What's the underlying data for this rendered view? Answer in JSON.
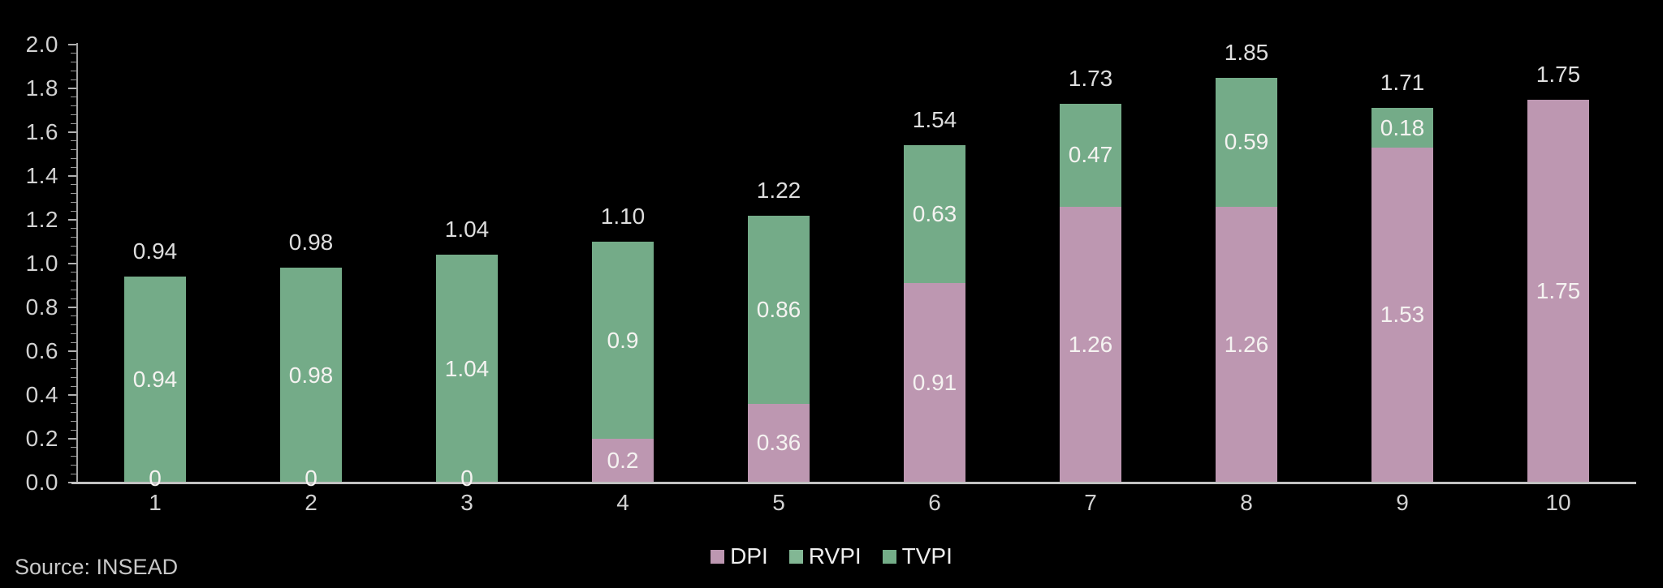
{
  "chart_data": {
    "type": "bar",
    "stacked": true,
    "title": "",
    "xlabel": "",
    "ylabel": "",
    "categories": [
      "1",
      "2",
      "3",
      "4",
      "5",
      "6",
      "7",
      "8",
      "9",
      "10"
    ],
    "series": [
      {
        "name": "DPI",
        "color": "#bd97b1",
        "values": [
          0,
          0,
          0,
          0.2,
          0.36,
          0.91,
          1.26,
          1.26,
          1.53,
          1.75
        ],
        "labels": [
          "0",
          "0",
          "0",
          "0.2",
          "0.36",
          "0.91",
          "1.26",
          "1.26",
          "1.53",
          "1.75"
        ]
      },
      {
        "name": "RVPI",
        "color": "#74ab88",
        "values": [
          0.94,
          0.98,
          1.04,
          0.9,
          0.86,
          0.63,
          0.47,
          0.59,
          0.18,
          0
        ],
        "labels": [
          "0.94",
          "0.98",
          "1.04",
          "0.9",
          "0.86",
          "0.63",
          "0.47",
          "0.59",
          "0.18",
          ""
        ]
      }
    ],
    "totals": {
      "name": "TVPI",
      "values": [
        0.94,
        0.98,
        1.04,
        1.1,
        1.22,
        1.54,
        1.73,
        1.85,
        1.71,
        1.75
      ],
      "labels": [
        "0.94",
        "0.98",
        "1.04",
        "1.10",
        "1.22",
        "1.54",
        "1.73",
        "1.85",
        "1.71",
        "1.75"
      ]
    },
    "ylim": [
      0,
      2.0
    ],
    "y_major_step": 0.2,
    "y_minor_step": 0.04,
    "y_tick_labels": [
      "0.0",
      "0.2",
      "0.4",
      "0.6",
      "0.8",
      "1.0",
      "1.2",
      "1.4",
      "1.6",
      "1.8",
      "2.0"
    ],
    "grid": false,
    "legend_position": "bottom",
    "legend": [
      {
        "label": "DPI",
        "color": "#bd97b1"
      },
      {
        "label": "RVPI",
        "color": "#82b794"
      },
      {
        "label": "TVPI",
        "color": "#74ad88"
      }
    ]
  },
  "source": {
    "label": "Source: INSEAD"
  },
  "colors": {
    "background": "#000000",
    "axis_spine": "#a3a3a3",
    "axis_baseline": "#c2c2c2",
    "tick_major": "#b0b0b0",
    "tick_minor": "#9a9a9a",
    "tick_label": "#d2d2d2",
    "total_label": "#dedede",
    "segment_label": "#f5f3f1",
    "legend_text": "#efefef",
    "source_text": "#c9c9c9"
  }
}
